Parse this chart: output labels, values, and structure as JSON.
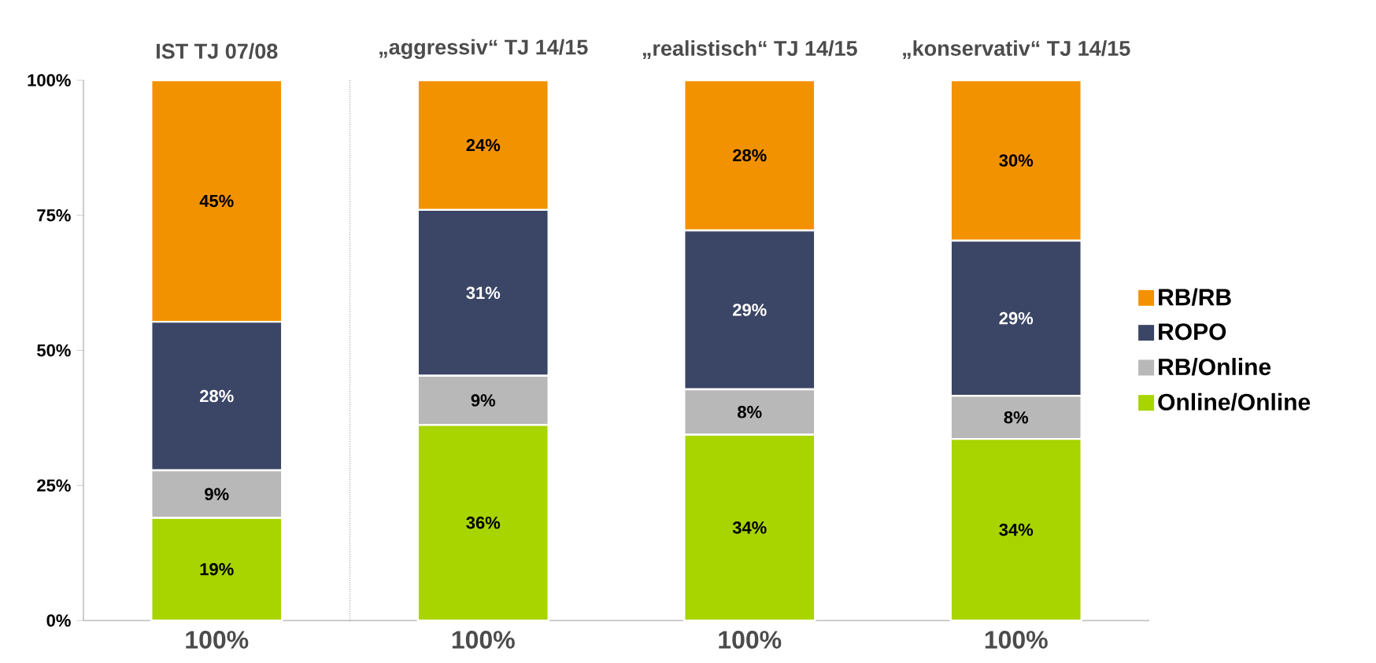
{
  "chart_data": {
    "type": "bar",
    "stacked": true,
    "categories": [
      "IST TJ 07/08",
      "„aggressiv“ TJ 14/15",
      "„realistisch“ TJ 14/15",
      "„konservativ“ TJ 14/15"
    ],
    "series": [
      {
        "name": "Online/Online",
        "color": "#a8d400",
        "values": [
          19,
          36.2,
          34.4,
          33.6
        ],
        "value_labels": [
          "19%",
          "36%",
          "34%",
          "34%"
        ]
      },
      {
        "name": "RB/Online",
        "color": "#b8b8b8",
        "values": [
          8.8,
          9.1,
          8.4,
          8.0
        ],
        "value_labels": [
          "9%",
          "9%",
          "8%",
          "8%"
        ]
      },
      {
        "name": "ROPO",
        "color": "#3b4565",
        "values": [
          27.5,
          30.7,
          29.4,
          28.7
        ],
        "value_labels": [
          "28%",
          "31%",
          "29%",
          "29%"
        ]
      },
      {
        "name": "RB/RB",
        "color": "#f39200",
        "values": [
          44.7,
          24.0,
          27.8,
          29.7
        ],
        "value_labels": [
          "45%",
          "24%",
          "28%",
          "30%"
        ]
      }
    ],
    "ylim": [
      0,
      100
    ],
    "yticks": [
      {
        "value": 0,
        "label": "0%"
      },
      {
        "value": 25,
        "label": "25%"
      },
      {
        "value": 50,
        "label": "50%"
      },
      {
        "value": 75,
        "label": "75%"
      },
      {
        "value": 100,
        "label": "100%"
      }
    ],
    "totals": [
      "100%",
      "100%",
      "100%",
      "100%"
    ],
    "legend": "right",
    "grid": false
  }
}
